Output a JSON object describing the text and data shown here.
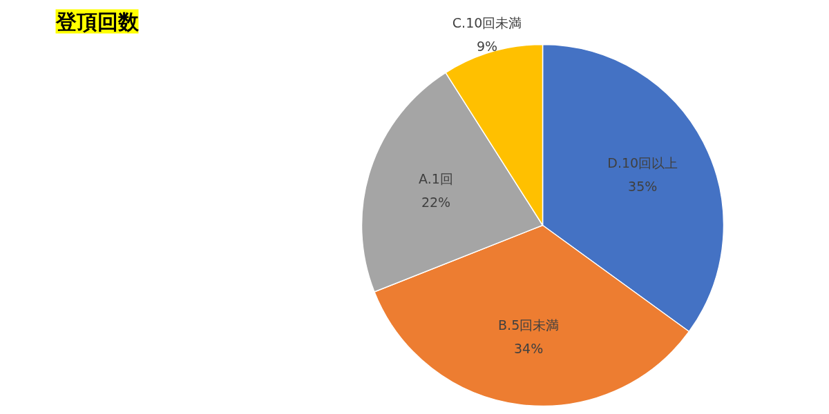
{
  "chart_data": {
    "type": "pie",
    "title": "登頂回数",
    "categories": [
      "D.10回以上",
      "B.5回未満",
      "A.1回",
      "C.10回未満"
    ],
    "values": [
      35,
      34,
      22,
      9
    ],
    "value_labels": [
      "35%",
      "34%",
      "22%",
      "9%"
    ],
    "colors": [
      "#4472c4",
      "#ed7d31",
      "#a5a5a5",
      "#ffc000"
    ]
  }
}
